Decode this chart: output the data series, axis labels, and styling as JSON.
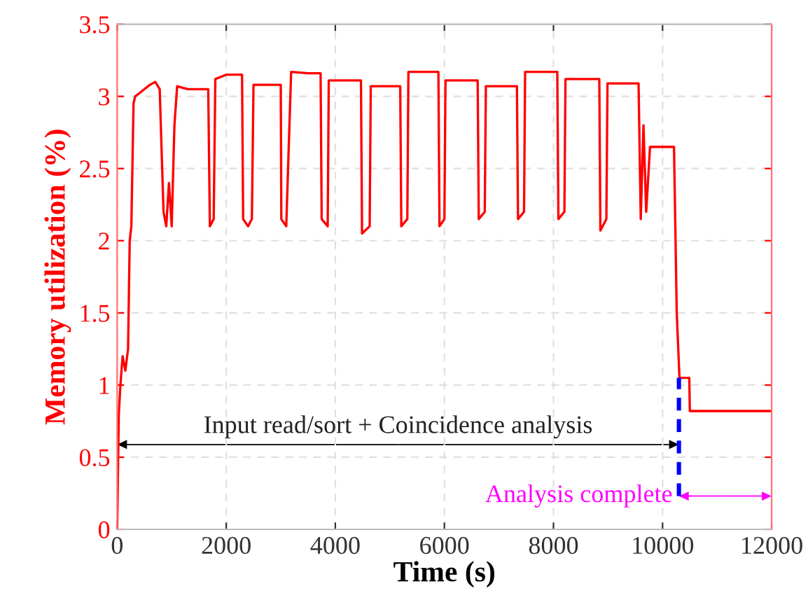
{
  "chart_data": {
    "type": "line",
    "xlabel": "Time (s)",
    "ylabel": "Memory utilization (%)",
    "xlim": [
      0,
      12000
    ],
    "xticks": [
      0,
      2000,
      4000,
      6000,
      8000,
      10000,
      12000
    ],
    "ylim": [
      0,
      3.5
    ],
    "yticks": [
      0,
      0.5,
      1,
      1.5,
      2,
      2.5,
      3,
      3.5
    ],
    "grid": true,
    "series": [
      {
        "color": "#ff0000",
        "x": [
          0,
          30,
          60,
          100,
          150,
          200,
          230,
          260,
          300,
          330,
          400,
          500,
          600,
          700,
          780,
          850,
          900,
          950,
          1000,
          1050,
          1100,
          1300,
          1500,
          1670,
          1700,
          1770,
          1800,
          2000,
          2290,
          2310,
          2400,
          2470,
          2500,
          2800,
          3000,
          3010,
          3100,
          3190,
          3500,
          3730,
          3750,
          3860,
          3880,
          4200,
          4470,
          4490,
          4630,
          4650,
          5000,
          5190,
          5210,
          5320,
          5340,
          5600,
          5890,
          5910,
          6000,
          6020,
          6300,
          6610,
          6630,
          6740,
          6760,
          7000,
          7330,
          7350,
          7460,
          7480,
          7800,
          8070,
          8090,
          8200,
          8220,
          8500,
          8840,
          8860,
          8970,
          8990,
          9300,
          9560,
          9600,
          9650,
          9700,
          9770,
          10000,
          10210,
          10260,
          10310,
          10490,
          10500,
          12000
        ],
        "values": [
          0,
          0.8,
          1.0,
          1.2,
          1.1,
          1.25,
          2.0,
          2.1,
          2.95,
          3.0,
          3.02,
          3.05,
          3.08,
          3.1,
          3.05,
          2.2,
          2.1,
          2.4,
          2.1,
          2.8,
          3.07,
          3.05,
          3.05,
          3.05,
          2.1,
          2.15,
          3.12,
          3.15,
          3.15,
          2.15,
          2.1,
          2.15,
          3.08,
          3.08,
          3.08,
          2.15,
          2.1,
          3.17,
          3.16,
          3.16,
          2.15,
          2.1,
          3.11,
          3.11,
          3.11,
          2.05,
          2.1,
          3.07,
          3.07,
          3.07,
          2.1,
          2.15,
          3.17,
          3.17,
          3.17,
          2.1,
          2.15,
          3.11,
          3.11,
          3.11,
          2.15,
          2.2,
          3.07,
          3.07,
          3.07,
          2.15,
          2.2,
          3.17,
          3.17,
          3.17,
          2.15,
          2.2,
          3.12,
          3.12,
          3.12,
          2.07,
          2.15,
          3.09,
          3.09,
          3.09,
          2.15,
          2.8,
          2.2,
          2.65,
          2.65,
          2.65,
          1.5,
          1.05,
          1.05,
          0.82,
          0.82
        ]
      },
      {
        "color": "#0000ff",
        "line_style": "dashed",
        "x": [
          10300,
          10300
        ],
        "values": [
          0.23,
          1.05
        ]
      }
    ],
    "annotations": [
      "Input read/sort + Coincidence analysis",
      "Analysis complete"
    ]
  }
}
